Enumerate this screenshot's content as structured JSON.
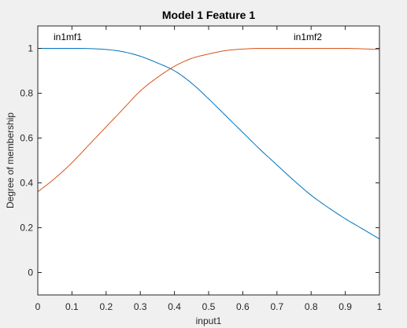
{
  "chart_data": {
    "type": "line",
    "title": "Model 1 Feature 1",
    "xlabel": "input1",
    "ylabel": "Degree of membership",
    "xlim": [
      0,
      1
    ],
    "ylim": [
      -0.1,
      1.1
    ],
    "xticks": [
      "0",
      "0.1",
      "0.2",
      "0.3",
      "0.4",
      "0.5",
      "0.6",
      "0.7",
      "0.8",
      "0.9",
      "1"
    ],
    "yticks": [
      "0",
      "0.2",
      "0.4",
      "0.6",
      "0.8",
      "1"
    ],
    "grid": false,
    "x": [
      0,
      0.05,
      0.1,
      0.15,
      0.2,
      0.25,
      0.3,
      0.35,
      0.4,
      0.45,
      0.5,
      0.55,
      0.6,
      0.65,
      0.7,
      0.75,
      0.8,
      0.85,
      0.9,
      0.95,
      1
    ],
    "series": [
      {
        "name": "in1mf1",
        "color": "#0072bd",
        "values": [
          1.0,
          1.0,
          1.0,
          0.999,
          0.995,
          0.985,
          0.965,
          0.935,
          0.9,
          0.845,
          0.775,
          0.7,
          0.625,
          0.55,
          0.48,
          0.41,
          0.345,
          0.29,
          0.24,
          0.195,
          0.15
        ]
      },
      {
        "name": "in1mf2",
        "color": "#d95319",
        "values": [
          0.36,
          0.42,
          0.49,
          0.57,
          0.65,
          0.73,
          0.81,
          0.87,
          0.92,
          0.955,
          0.975,
          0.99,
          0.997,
          1.0,
          1.0,
          1.0,
          1.0,
          1.0,
          1.0,
          0.998,
          0.995
        ]
      }
    ]
  }
}
